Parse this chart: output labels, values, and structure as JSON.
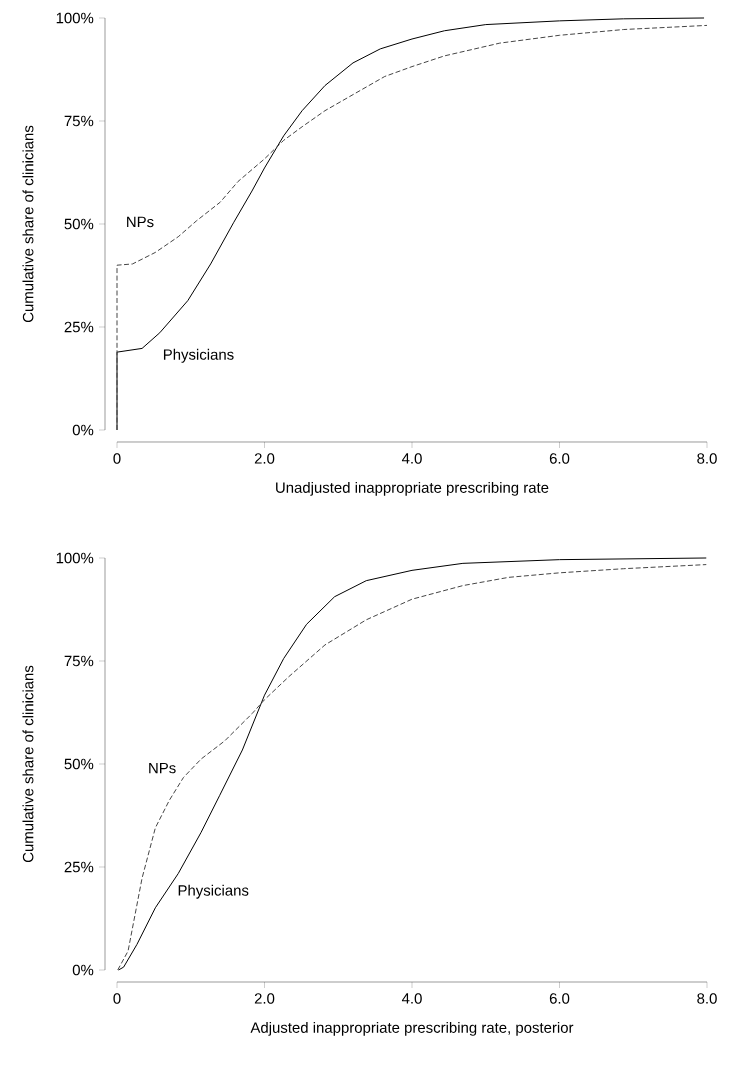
{
  "chart_data": [
    {
      "type": "line",
      "xlabel": "Unadjusted inappropriate prescribing rate",
      "ylabel": "Cumulative share of clinicians",
      "xlim": [
        0,
        8
      ],
      "ylim": [
        0,
        100
      ],
      "xticks": [
        {
          "value": 0,
          "label": "0"
        },
        {
          "value": 2,
          "label": "2.0"
        },
        {
          "value": 4,
          "label": "4.0"
        },
        {
          "value": 6,
          "label": "6.0"
        },
        {
          "value": 8,
          "label": "8.0"
        }
      ],
      "yticks": [
        {
          "value": 0,
          "label": "0%"
        },
        {
          "value": 25,
          "label": "25%"
        },
        {
          "value": 50,
          "label": "50%"
        },
        {
          "value": 75,
          "label": "75%"
        },
        {
          "value": 100,
          "label": "100%"
        }
      ],
      "grid": false,
      "legend": false,
      "marker": "none",
      "series": [
        {
          "name": "Physicians",
          "color": "#000000",
          "line_style": "solid",
          "x": [
            0,
            0,
            0.34,
            0.58,
            0.96,
            1.27,
            1.58,
            1.83,
            2.0,
            2.26,
            2.51,
            2.82,
            3.2,
            3.57,
            4.0,
            4.44,
            5.0,
            6.0,
            6.87,
            7.96
          ],
          "values": [
            0,
            18.9,
            19.8,
            23.6,
            31.4,
            40.3,
            50.3,
            58.0,
            63.6,
            71.4,
            77.5,
            83.6,
            89.1,
            92.5,
            94.9,
            96.9,
            98.4,
            99.3,
            99.8,
            100
          ]
        },
        {
          "name": "NPs",
          "color": "#444444",
          "line_style": "dashed",
          "x": [
            0,
            0,
            0.21,
            0.52,
            0.83,
            1.08,
            1.4,
            1.64,
            2.0,
            2.26,
            2.51,
            2.82,
            3.2,
            3.63,
            4.0,
            4.44,
            5.19,
            6.0,
            6.87,
            8.0
          ],
          "values": [
            0,
            40.0,
            40.3,
            43.1,
            46.9,
            50.8,
            55.3,
            60.3,
            65.8,
            70.3,
            73.6,
            77.5,
            81.4,
            85.8,
            88.2,
            90.8,
            93.9,
            95.8,
            97.2,
            98.2
          ]
        }
      ]
    },
    {
      "type": "line",
      "xlabel": "Adjusted inappropriate prescribing rate, posterior",
      "ylabel": "Cumulative share of clinicians",
      "xlim": [
        0,
        8
      ],
      "ylim": [
        0,
        100
      ],
      "xticks": [
        {
          "value": 0,
          "label": "0"
        },
        {
          "value": 2,
          "label": "2.0"
        },
        {
          "value": 4,
          "label": "4.0"
        },
        {
          "value": 6,
          "label": "6.0"
        },
        {
          "value": 8,
          "label": "8.0"
        }
      ],
      "yticks": [
        {
          "value": 0,
          "label": "0%"
        },
        {
          "value": 25,
          "label": "25%"
        },
        {
          "value": 50,
          "label": "50%"
        },
        {
          "value": 75,
          "label": "75%"
        },
        {
          "value": 100,
          "label": "100%"
        }
      ],
      "grid": false,
      "legend": false,
      "marker": "none",
      "series": [
        {
          "name": "Physicians",
          "color": "#000000",
          "line_style": "solid",
          "x": [
            0.02,
            0.09,
            0.27,
            0.52,
            0.83,
            1.14,
            1.39,
            1.7,
            2.0,
            2.26,
            2.57,
            2.95,
            3.38,
            4.0,
            4.69,
            6.0,
            7.99
          ],
          "values": [
            0,
            0.7,
            6.2,
            15.1,
            23.4,
            33.4,
            42.3,
            53.4,
            66.7,
            75.6,
            83.9,
            90.6,
            94.5,
            97.0,
            98.7,
            99.6,
            100
          ]
        },
        {
          "name": "NPs",
          "color": "#444444",
          "line_style": "dashed",
          "x": [
            0.01,
            0.15,
            0.34,
            0.52,
            0.71,
            0.9,
            1.14,
            1.46,
            1.83,
            2.0,
            2.33,
            2.82,
            3.38,
            4.0,
            4.69,
            5.31,
            6.0,
            6.87,
            7.99
          ],
          "values": [
            0,
            4.6,
            22.3,
            34.5,
            41.2,
            46.7,
            51.2,
            55.6,
            62.2,
            65.6,
            71.2,
            78.9,
            85.0,
            90.0,
            93.3,
            95.3,
            96.4,
            97.4,
            98.4
          ]
        }
      ]
    }
  ]
}
